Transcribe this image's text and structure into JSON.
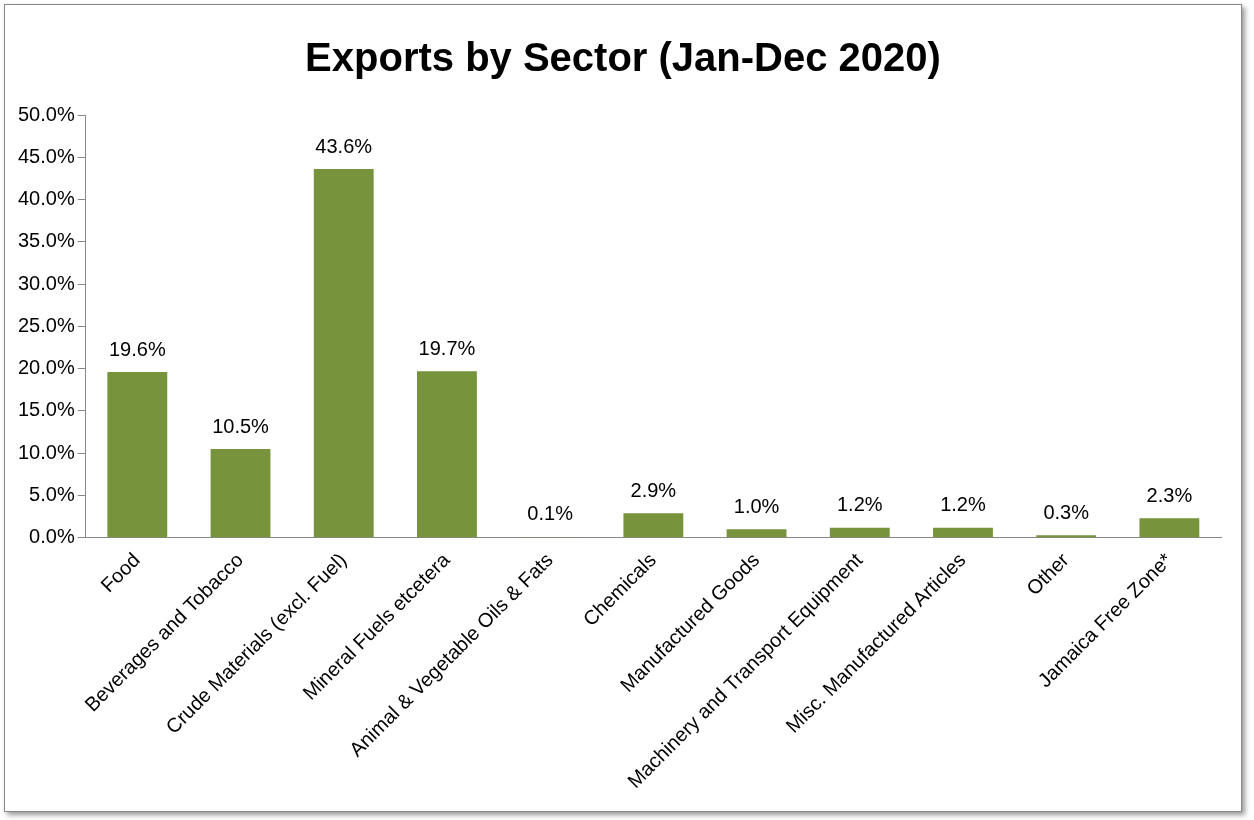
{
  "chart_data": {
    "type": "bar",
    "title": "Exports by Sector (Jan-Dec 2020)",
    "categories": [
      "Food",
      "Beverages and Tobacco",
      "Crude Materials (excl. Fuel)",
      "Mineral Fuels etcetera",
      "Animal & Vegetable Oils & Fats",
      "Chemicals",
      "Manufactured Goods",
      "Machinery and Transport Equipment",
      "Misc. Manufactured Articles",
      "Other",
      "Jamaica Free Zone*"
    ],
    "values": [
      19.6,
      10.5,
      43.6,
      19.7,
      0.1,
      2.9,
      1.0,
      1.2,
      1.2,
      0.3,
      2.3
    ],
    "value_labels": [
      "19.6%",
      "10.5%",
      "43.6%",
      "19.7%",
      "0.1%",
      "2.9%",
      "1.0%",
      "1.2%",
      "1.2%",
      "0.3%",
      "2.3%"
    ],
    "color": "#77933c",
    "ylim": [
      0,
      50
    ],
    "yticks": [
      {
        "value": 0,
        "label": "0.0%"
      },
      {
        "value": 5,
        "label": "5.0%"
      },
      {
        "value": 10,
        "label": "10.0%"
      },
      {
        "value": 15,
        "label": "15.0%"
      },
      {
        "value": 20,
        "label": "20.0%"
      },
      {
        "value": 25,
        "label": "25.0%"
      },
      {
        "value": 30,
        "label": "30.0%"
      },
      {
        "value": 35,
        "label": "35.0%"
      },
      {
        "value": 40,
        "label": "40.0%"
      },
      {
        "value": 45,
        "label": "45.0%"
      },
      {
        "value": 50,
        "label": "50.0%"
      }
    ],
    "grid": false,
    "legend": false
  }
}
